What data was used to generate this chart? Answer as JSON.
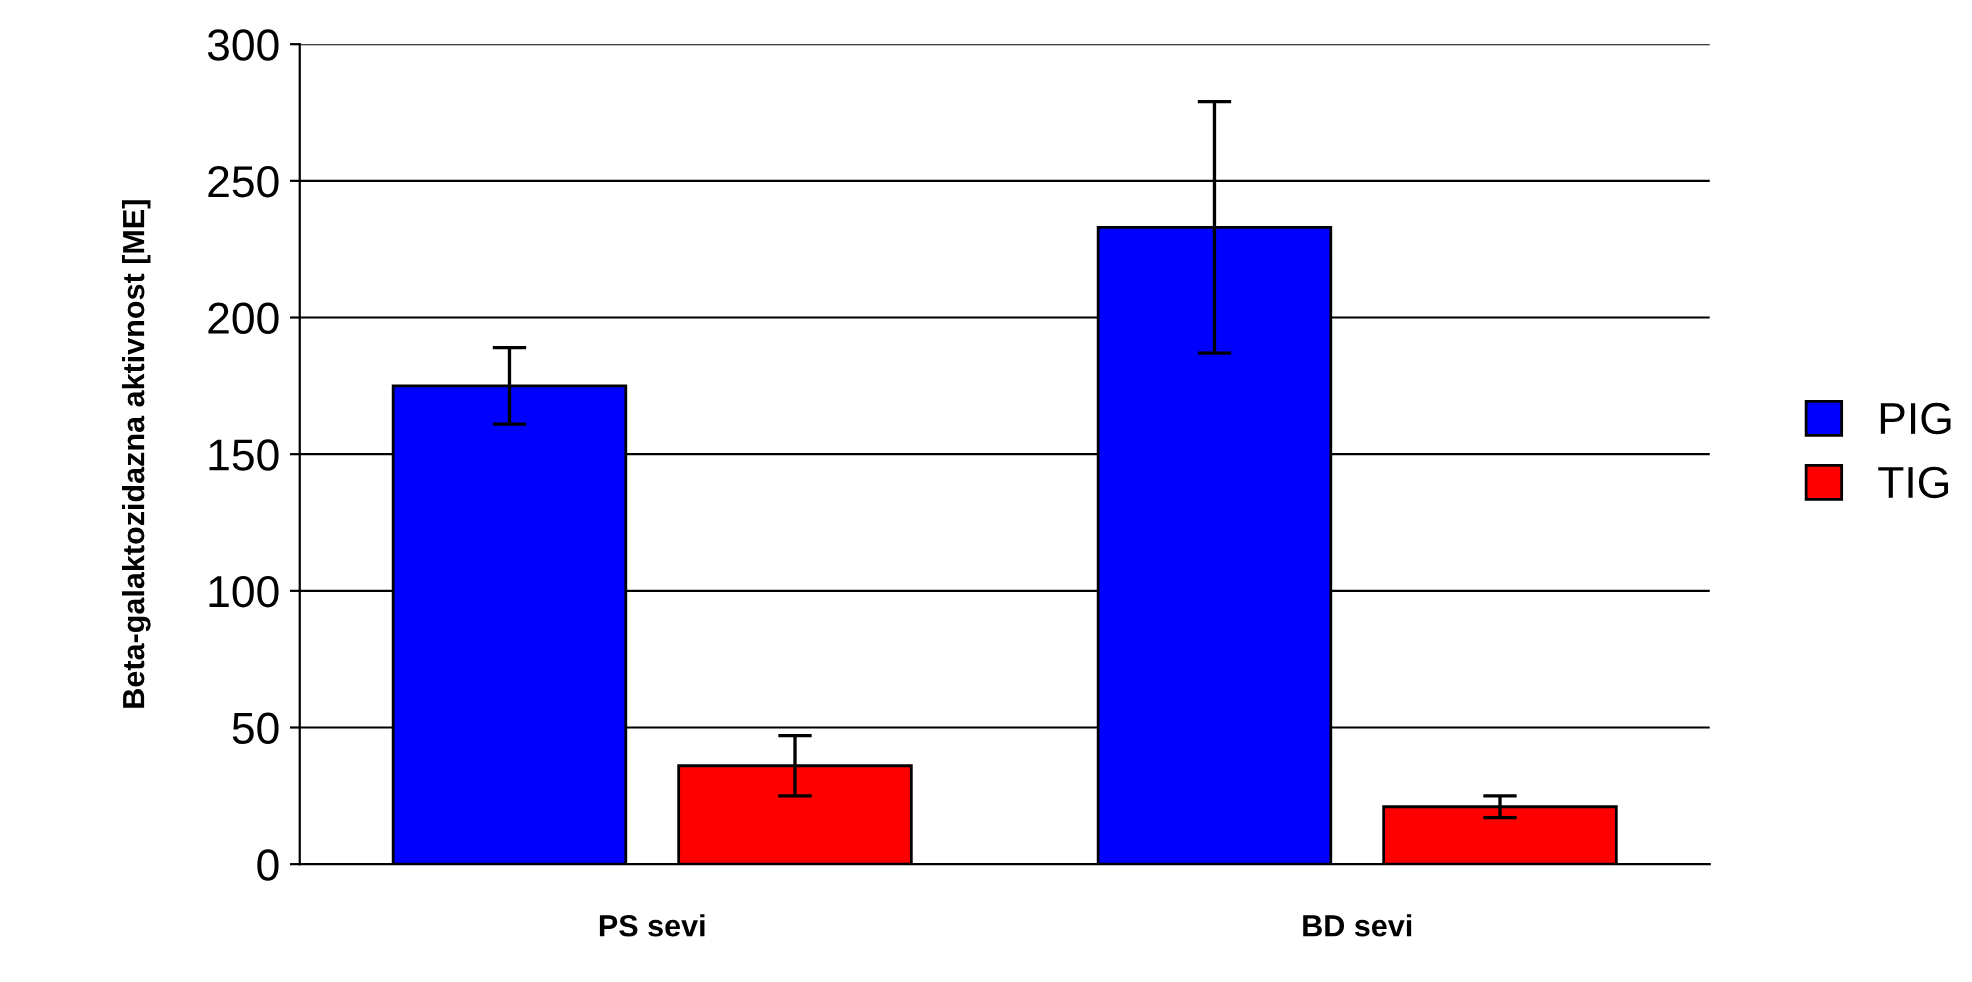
{
  "chart_data": {
    "type": "bar",
    "ylabel": "Beta-galaktozidazna aktivnost [ME]",
    "categories": [
      "PS sevi",
      "BD sevi"
    ],
    "series": [
      {
        "name": "PIG",
        "color": "#0000ff",
        "values": [
          175,
          233
        ],
        "errors": [
          14,
          46
        ]
      },
      {
        "name": "TIG",
        "color": "#ff0000",
        "values": [
          36,
          21
        ],
        "errors": [
          11,
          4
        ]
      }
    ],
    "ylim": [
      0,
      300
    ],
    "yticks": [
      0,
      50,
      100,
      150,
      200,
      250,
      300
    ],
    "grid": "y",
    "legend": "right"
  }
}
